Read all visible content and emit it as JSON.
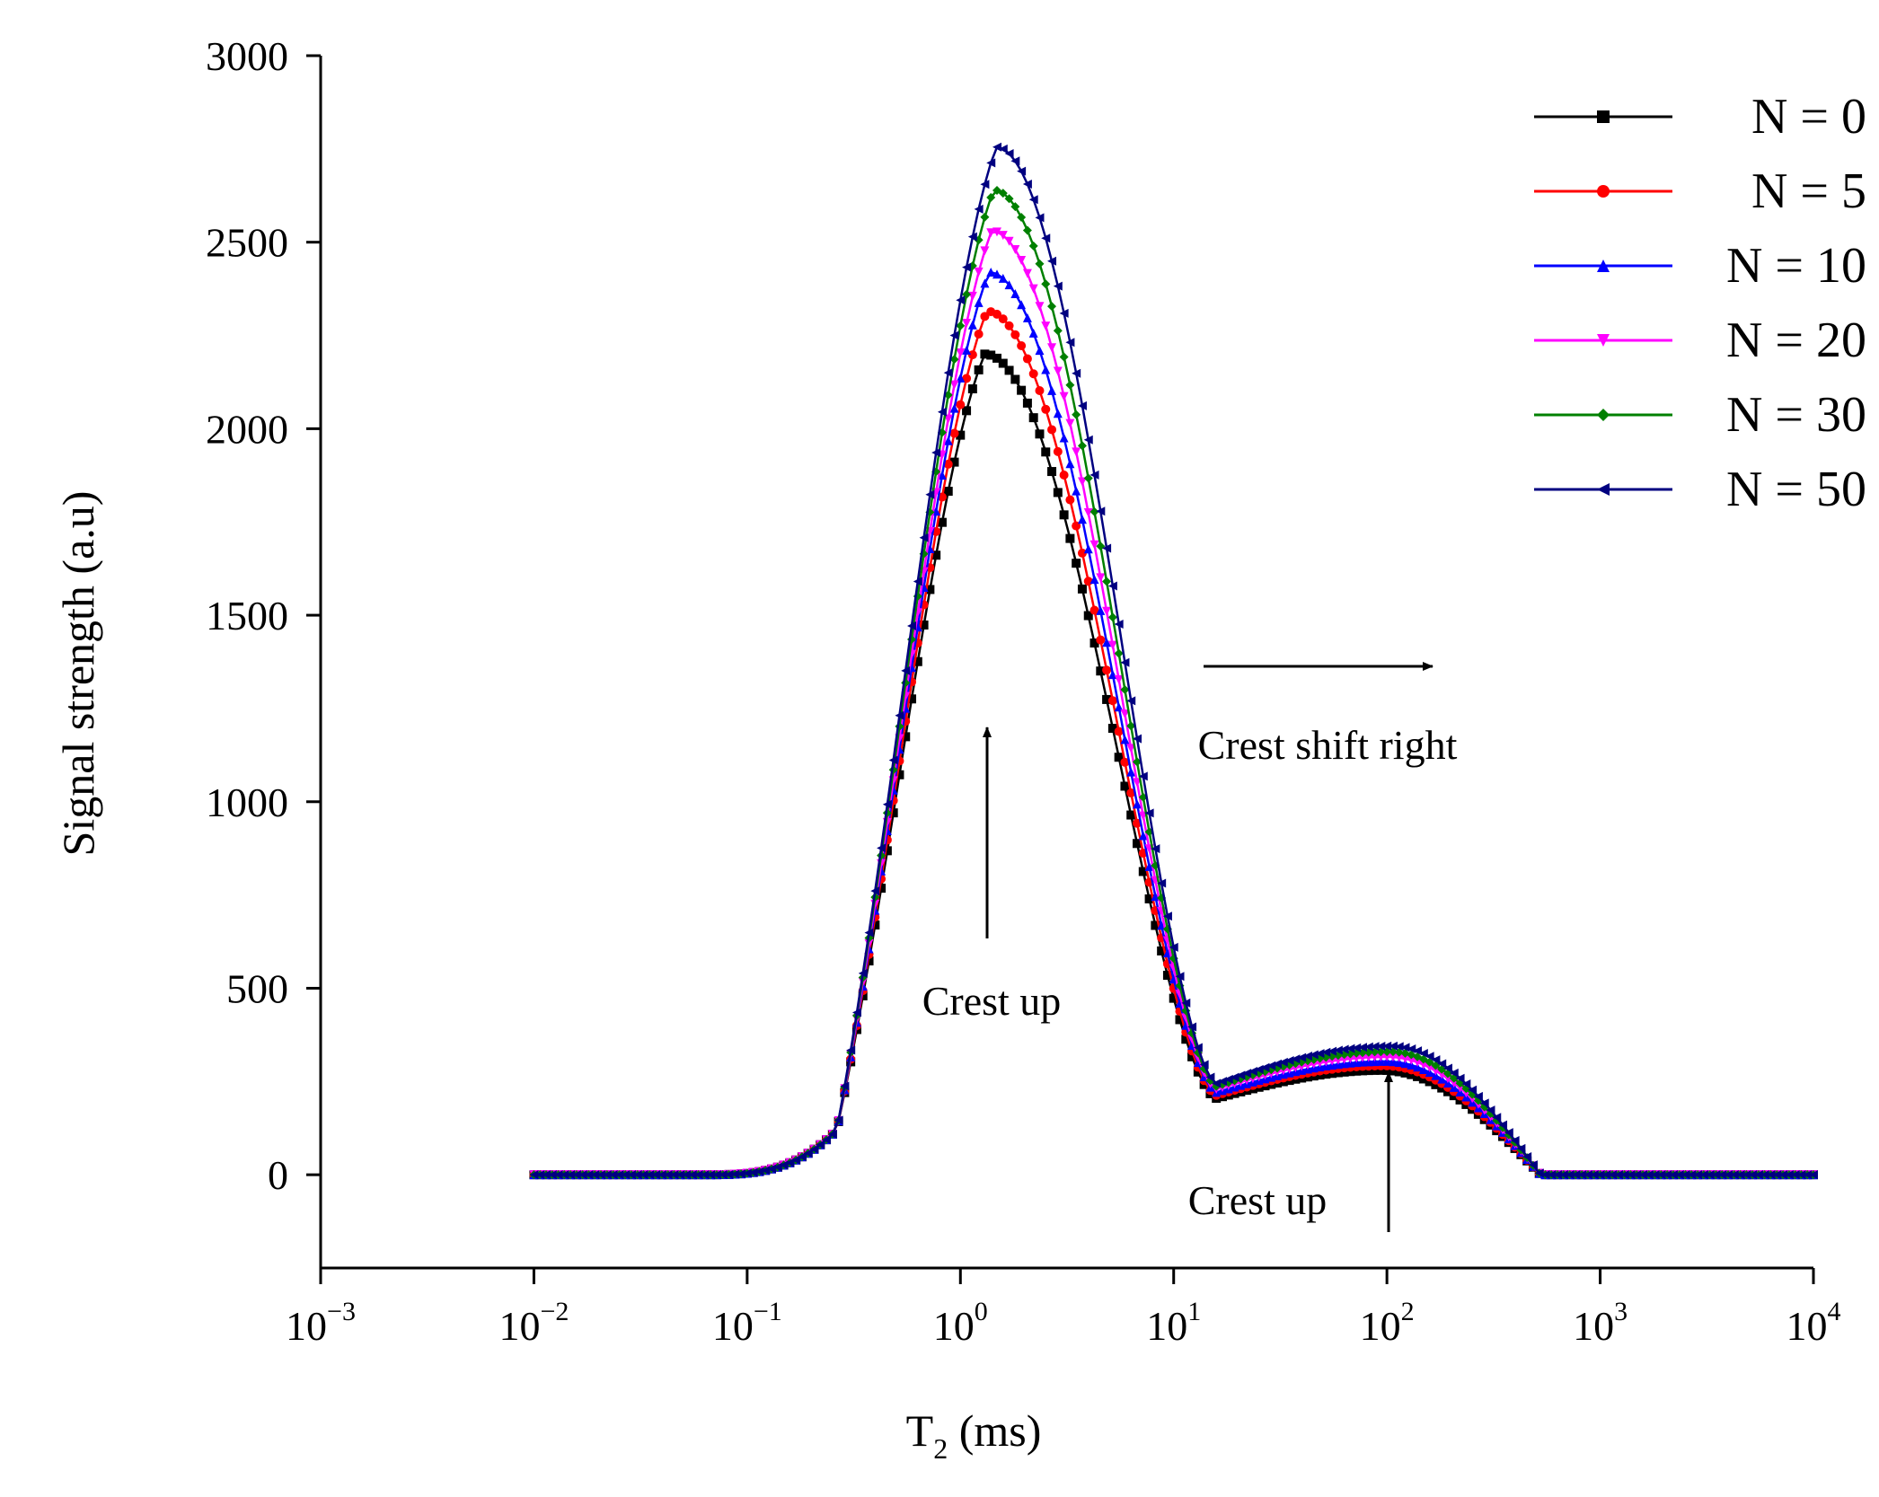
{
  "chart_data": {
    "type": "line",
    "title": "",
    "xlabel": "T",
    "xlabel_sub": "2",
    "xlabel_unit": " (ms)",
    "ylabel": "Signal strength (a.u)",
    "xscale": "log",
    "xlim": [
      0.001,
      10000
    ],
    "ylim": [
      -250,
      3000
    ],
    "yticks": [
      0,
      500,
      1000,
      1500,
      2000,
      2500,
      3000
    ],
    "ytick_labels": [
      "0",
      "500",
      "1000",
      "1500",
      "2000",
      "2500",
      "3000"
    ],
    "xticks": [
      0.001,
      0.01,
      0.1,
      1,
      10,
      100,
      1000,
      10000
    ],
    "xtick_labels": [
      {
        "base": "10",
        "exp": "−3"
      },
      {
        "base": "10",
        "exp": "−2"
      },
      {
        "base": "10",
        "exp": "−1"
      },
      {
        "base": "10",
        "exp": "0"
      },
      {
        "base": "10",
        "exp": "1"
      },
      {
        "base": "10",
        "exp": "2"
      },
      {
        "base": "10",
        "exp": "3"
      },
      {
        "base": "10",
        "exp": "4"
      }
    ],
    "legend_position": "top-right",
    "series": [
      {
        "name": "N = 0",
        "color": "#000000",
        "marker": "square",
        "peak1": 2200,
        "peak1_x": 1.3,
        "peak2": 280,
        "peak2_x": 95,
        "trough": 205
      },
      {
        "name": "N = 5",
        "color": "#ff0000",
        "marker": "circle",
        "peak1": 2315,
        "peak1_x": 1.33,
        "peak2": 292,
        "peak2_x": 97,
        "trough": 213
      },
      {
        "name": "N = 10",
        "color": "#0000ff",
        "marker": "triangle-up",
        "peak1": 2420,
        "peak1_x": 1.36,
        "peak2": 304,
        "peak2_x": 99,
        "trough": 221
      },
      {
        "name": "N = 20",
        "color": "#ff00ff",
        "marker": "triangle-down",
        "peak1": 2530,
        "peak1_x": 1.4,
        "peak2": 316,
        "peak2_x": 101,
        "trough": 229
      },
      {
        "name": "N = 30",
        "color": "#008000",
        "marker": "diamond",
        "peak1": 2640,
        "peak1_x": 1.43,
        "peak2": 330,
        "peak2_x": 103,
        "trough": 237
      },
      {
        "name": "N = 50",
        "color": "#000080",
        "marker": "triangle-left",
        "peak1": 2755,
        "peak1_x": 1.47,
        "peak2": 345,
        "peak2_x": 105,
        "trough": 245
      }
    ],
    "annotations": [
      {
        "id": "crest-up-main",
        "text": "Crest up",
        "arrow": "up"
      },
      {
        "id": "crest-shift",
        "text": "Crest shift right",
        "arrow": "right"
      },
      {
        "id": "crest-up-second",
        "text": "Crest up",
        "arrow": "up"
      }
    ]
  }
}
